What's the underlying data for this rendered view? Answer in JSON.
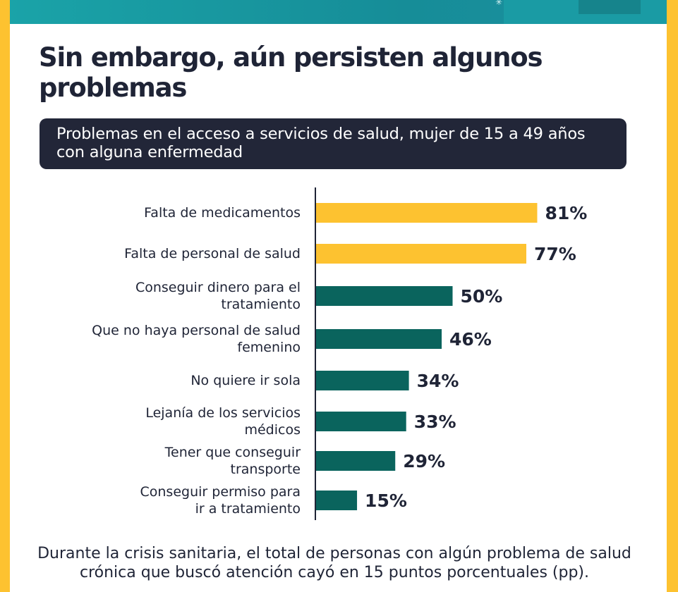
{
  "page": {
    "title": "Sin embargo, aún persisten algunos problemas",
    "footnote": "Durante la crisis sanitaria, el total de personas con algún problema de salud crónica que buscó atención cayó en 15 puntos porcentuales (pp)."
  },
  "colors": {
    "frame": "#fdc230",
    "band": "#1aa3a8",
    "highlight_bar": "#fdc230",
    "bar": "#0a645d",
    "subtitle_bg": "#222638",
    "text": "#1f2436"
  },
  "chart_data": {
    "type": "bar",
    "orientation": "horizontal",
    "title": "Problemas en el acceso a servicios de salud, mujer de 15 a 49 años con alguna enfermedad",
    "categories": [
      [
        "Falta de medicamentos"
      ],
      [
        "Falta de personal de salud"
      ],
      [
        "Conseguir dinero para el",
        "tratamiento"
      ],
      [
        "Que no haya personal de salud",
        "femenino"
      ],
      [
        "No quiere ir sola"
      ],
      [
        "Lejanía de los servicios",
        "médicos"
      ],
      [
        "Tener que conseguir",
        "transporte"
      ],
      [
        "Conseguir permiso para",
        "ir a tratamiento"
      ]
    ],
    "values": [
      81,
      77,
      50,
      46,
      34,
      33,
      29,
      15
    ],
    "value_labels": [
      "81%",
      "77%",
      "50%",
      "46%",
      "34%",
      "33%",
      "29%",
      "15%"
    ],
    "highlighted": [
      true,
      true,
      false,
      false,
      false,
      false,
      false,
      false
    ],
    "xlim": [
      0,
      100
    ],
    "grid": false,
    "legend": "none"
  }
}
